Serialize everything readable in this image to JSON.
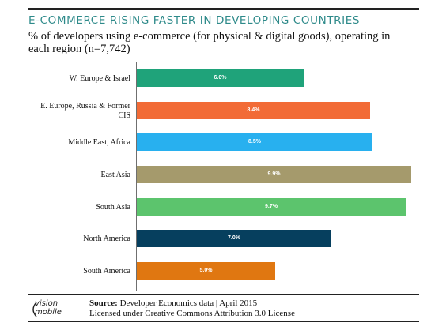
{
  "header": {
    "title": "E-COMMERCE RISING FASTER IN DEVELOPING COUNTRIES",
    "subtitle": "% of developers using e-commerce (for physical & digital goods), operating in each region (n=7,742)"
  },
  "chart_data": {
    "type": "bar",
    "orientation": "horizontal",
    "categories": [
      "W. Europe & Israel",
      "E. Europe, Russia & Former CIS",
      "Middle East, Africa",
      "East Asia",
      "South Asia",
      "North America",
      "South America"
    ],
    "values": [
      6.0,
      8.4,
      8.5,
      9.9,
      9.7,
      7.0,
      5.0
    ],
    "labels": [
      "6.0%",
      "8.4%",
      "8.5%",
      "9.9%",
      "9.7%",
      "7.0%",
      "5.0%"
    ],
    "colors": [
      "#1fa37a",
      "#f26b36",
      "#28b0ef",
      "#a59a6c",
      "#5cc46d",
      "#063f5e",
      "#e07711"
    ],
    "xlim": [
      0,
      10.2
    ],
    "grid": false,
    "legend": "none"
  },
  "footer": {
    "logo_top": "vision",
    "logo_bottom": "mobile",
    "source_label": "Source:",
    "source_text": "Developer Economics data | April 2015",
    "license_text": "Licensed under Creative Commons Attribution 3.0 License"
  }
}
